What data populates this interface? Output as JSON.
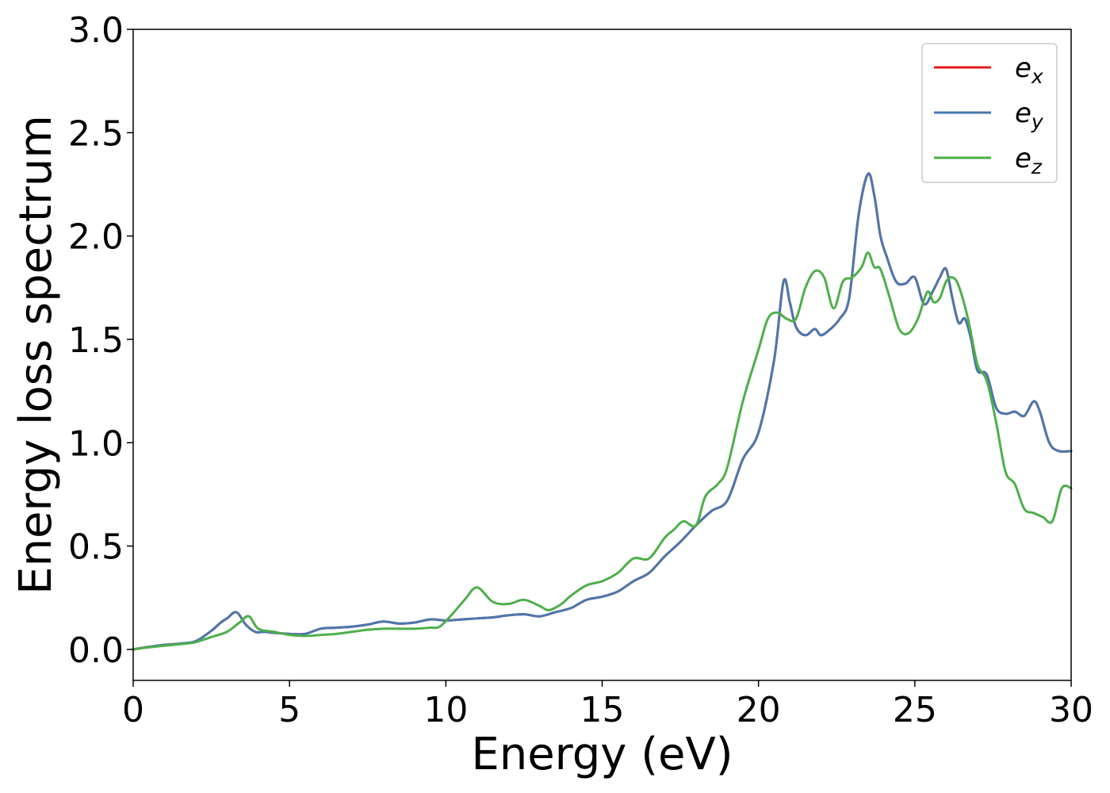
{
  "chart_data": {
    "type": "line",
    "title": "",
    "xlabel": "Energy (eV)",
    "ylabel": "Energy loss spectrum",
    "xlim": [
      0,
      30
    ],
    "ylim": [
      -0.15,
      3.0
    ],
    "xticks": [
      0,
      5,
      10,
      15,
      20,
      25,
      30
    ],
    "xtick_labels": [
      "0",
      "5",
      "10",
      "15",
      "20",
      "25",
      "30"
    ],
    "yticks": [
      0.0,
      0.5,
      1.0,
      1.5,
      2.0,
      2.5,
      3.0
    ],
    "ytick_labels": [
      "0.0",
      "0.5",
      "1.0",
      "1.5",
      "2.0",
      "2.5",
      "3.0"
    ],
    "grid": false,
    "legend_position": "top-right",
    "series": [
      {
        "name": "e_x",
        "legend_base": "e",
        "legend_sub": "x",
        "color": "#e41a1c",
        "x": [
          0,
          0.5,
          1,
          1.5,
          2,
          2.5,
          2.8,
          3,
          3.3,
          3.6,
          3.9,
          4.2,
          4.5,
          5,
          5.5,
          6,
          6.5,
          7,
          7.5,
          8,
          8.5,
          9,
          9.5,
          10,
          10.5,
          11,
          11.5,
          12,
          12.5,
          13,
          13.5,
          14,
          14.5,
          15,
          15.5,
          16,
          16.5,
          17,
          17.5,
          18,
          18.5,
          19,
          19.5,
          20,
          20.5,
          20.8,
          21,
          21.2,
          21.5,
          21.8,
          22,
          22.3,
          22.6,
          22.9,
          23.2,
          23.5,
          23.7,
          23.9,
          24.1,
          24.4,
          24.7,
          25,
          25.3,
          25.6,
          25.8,
          26,
          26.2,
          26.4,
          26.6,
          26.8,
          27,
          27.3,
          27.6,
          27.9,
          28.2,
          28.5,
          28.8,
          29,
          29.3,
          29.6,
          30
        ],
        "y": [
          0,
          0.012,
          0.022,
          0.028,
          0.04,
          0.09,
          0.13,
          0.15,
          0.18,
          0.12,
          0.085,
          0.085,
          0.08,
          0.075,
          0.075,
          0.1,
          0.105,
          0.11,
          0.12,
          0.135,
          0.125,
          0.13,
          0.145,
          0.14,
          0.145,
          0.15,
          0.155,
          0.165,
          0.17,
          0.16,
          0.18,
          0.2,
          0.24,
          0.255,
          0.28,
          0.33,
          0.37,
          0.45,
          0.52,
          0.6,
          0.67,
          0.72,
          0.92,
          1.05,
          1.4,
          1.78,
          1.68,
          1.56,
          1.52,
          1.55,
          1.52,
          1.55,
          1.6,
          1.7,
          2.1,
          2.3,
          2.2,
          2.0,
          1.9,
          1.78,
          1.77,
          1.8,
          1.67,
          1.74,
          1.8,
          1.84,
          1.7,
          1.58,
          1.6,
          1.5,
          1.35,
          1.33,
          1.17,
          1.14,
          1.15,
          1.13,
          1.2,
          1.15,
          1.0,
          0.96,
          0.96
        ]
      },
      {
        "name": "e_y",
        "legend_base": "e",
        "legend_sub": "y",
        "color": "#4a78ad",
        "x": [
          0,
          0.5,
          1,
          1.5,
          2,
          2.5,
          2.8,
          3,
          3.3,
          3.6,
          3.9,
          4.2,
          4.5,
          5,
          5.5,
          6,
          6.5,
          7,
          7.5,
          8,
          8.5,
          9,
          9.5,
          10,
          10.5,
          11,
          11.5,
          12,
          12.5,
          13,
          13.5,
          14,
          14.5,
          15,
          15.5,
          16,
          16.5,
          17,
          17.5,
          18,
          18.5,
          19,
          19.5,
          20,
          20.5,
          20.8,
          21,
          21.2,
          21.5,
          21.8,
          22,
          22.3,
          22.6,
          22.9,
          23.2,
          23.5,
          23.7,
          23.9,
          24.1,
          24.4,
          24.7,
          25,
          25.3,
          25.6,
          25.8,
          26,
          26.2,
          26.4,
          26.6,
          26.8,
          27,
          27.3,
          27.6,
          27.9,
          28.2,
          28.5,
          28.8,
          29,
          29.3,
          29.6,
          30
        ],
        "y": [
          0,
          0.012,
          0.022,
          0.028,
          0.04,
          0.09,
          0.13,
          0.15,
          0.18,
          0.12,
          0.085,
          0.085,
          0.08,
          0.075,
          0.075,
          0.1,
          0.105,
          0.11,
          0.12,
          0.135,
          0.125,
          0.13,
          0.145,
          0.14,
          0.145,
          0.15,
          0.155,
          0.165,
          0.17,
          0.16,
          0.18,
          0.2,
          0.24,
          0.255,
          0.28,
          0.33,
          0.37,
          0.45,
          0.52,
          0.6,
          0.67,
          0.72,
          0.92,
          1.05,
          1.4,
          1.78,
          1.68,
          1.56,
          1.52,
          1.55,
          1.52,
          1.55,
          1.6,
          1.7,
          2.1,
          2.3,
          2.2,
          2.0,
          1.9,
          1.78,
          1.77,
          1.8,
          1.67,
          1.74,
          1.8,
          1.84,
          1.7,
          1.58,
          1.6,
          1.5,
          1.35,
          1.33,
          1.17,
          1.14,
          1.15,
          1.13,
          1.2,
          1.15,
          1.0,
          0.96,
          0.96
        ]
      },
      {
        "name": "e_z",
        "legend_base": "e",
        "legend_sub": "z",
        "color": "#4daf4a",
        "x": [
          0,
          0.5,
          1,
          1.5,
          2,
          2.5,
          3,
          3.4,
          3.7,
          4,
          4.5,
          5,
          5.5,
          6,
          6.5,
          7,
          7.5,
          8,
          8.5,
          9,
          9.5,
          9.8,
          10.2,
          10.6,
          11,
          11.5,
          12,
          12.5,
          13,
          13.3,
          13.7,
          14,
          14.5,
          15,
          15.5,
          16,
          16.5,
          17,
          17.3,
          17.6,
          18,
          18.3,
          18.7,
          19,
          19.5,
          20,
          20.3,
          20.6,
          20.9,
          21.2,
          21.5,
          21.8,
          22.1,
          22.4,
          22.7,
          23,
          23.3,
          23.5,
          23.7,
          23.9,
          24.2,
          24.5,
          24.8,
          25.1,
          25.4,
          25.6,
          25.8,
          26,
          26.2,
          26.4,
          26.7,
          27,
          27.3,
          27.6,
          27.9,
          28.2,
          28.5,
          28.8,
          29.1,
          29.4,
          29.7,
          30
        ],
        "y": [
          0,
          0.01,
          0.018,
          0.025,
          0.035,
          0.06,
          0.085,
          0.13,
          0.16,
          0.1,
          0.085,
          0.07,
          0.065,
          0.07,
          0.075,
          0.085,
          0.095,
          0.1,
          0.1,
          0.1,
          0.105,
          0.11,
          0.17,
          0.24,
          0.3,
          0.23,
          0.22,
          0.24,
          0.21,
          0.19,
          0.22,
          0.26,
          0.31,
          0.33,
          0.37,
          0.44,
          0.44,
          0.54,
          0.58,
          0.62,
          0.6,
          0.74,
          0.8,
          0.88,
          1.2,
          1.45,
          1.6,
          1.63,
          1.6,
          1.6,
          1.75,
          1.83,
          1.8,
          1.65,
          1.78,
          1.8,
          1.85,
          1.92,
          1.85,
          1.84,
          1.7,
          1.55,
          1.53,
          1.6,
          1.73,
          1.68,
          1.7,
          1.78,
          1.8,
          1.76,
          1.6,
          1.38,
          1.3,
          1.1,
          0.86,
          0.8,
          0.68,
          0.66,
          0.64,
          0.62,
          0.78,
          0.78
        ]
      }
    ]
  }
}
